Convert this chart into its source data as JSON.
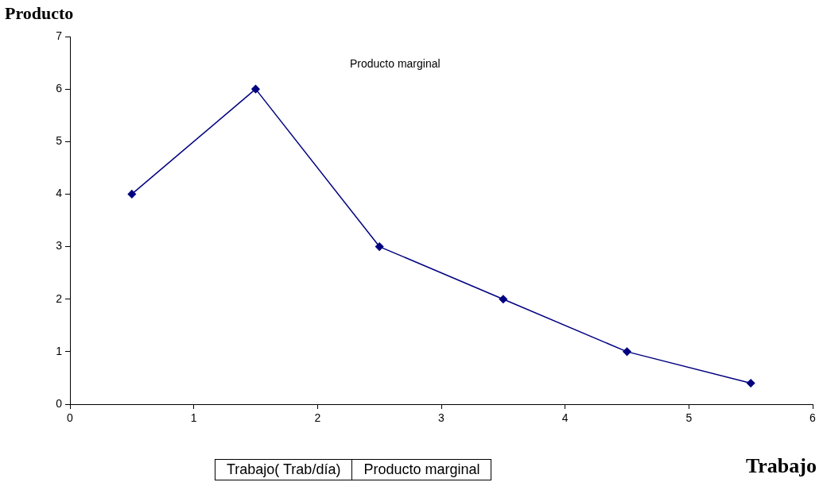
{
  "chart_data": {
    "type": "line",
    "xlabel": "Trabajo",
    "ylabel": "Producto",
    "x": [
      0.5,
      1.5,
      2.5,
      3.5,
      4.5,
      5.5
    ],
    "series": [
      {
        "name": "Producto marginal",
        "color": "#000080",
        "values": [
          4,
          6,
          3,
          2,
          1,
          0.4
        ]
      }
    ],
    "xlim": [
      0,
      6
    ],
    "xticks": [
      0,
      1,
      2,
      3,
      4,
      5,
      6
    ],
    "ylim": [
      0,
      7
    ],
    "yticks": [
      0,
      1,
      2,
      3,
      4,
      5,
      6,
      7
    ],
    "grid": false,
    "marker": "diamond",
    "line_style": "solid",
    "annotations": [
      "Trabajo( Trab/día)",
      "Producto marginal"
    ]
  }
}
